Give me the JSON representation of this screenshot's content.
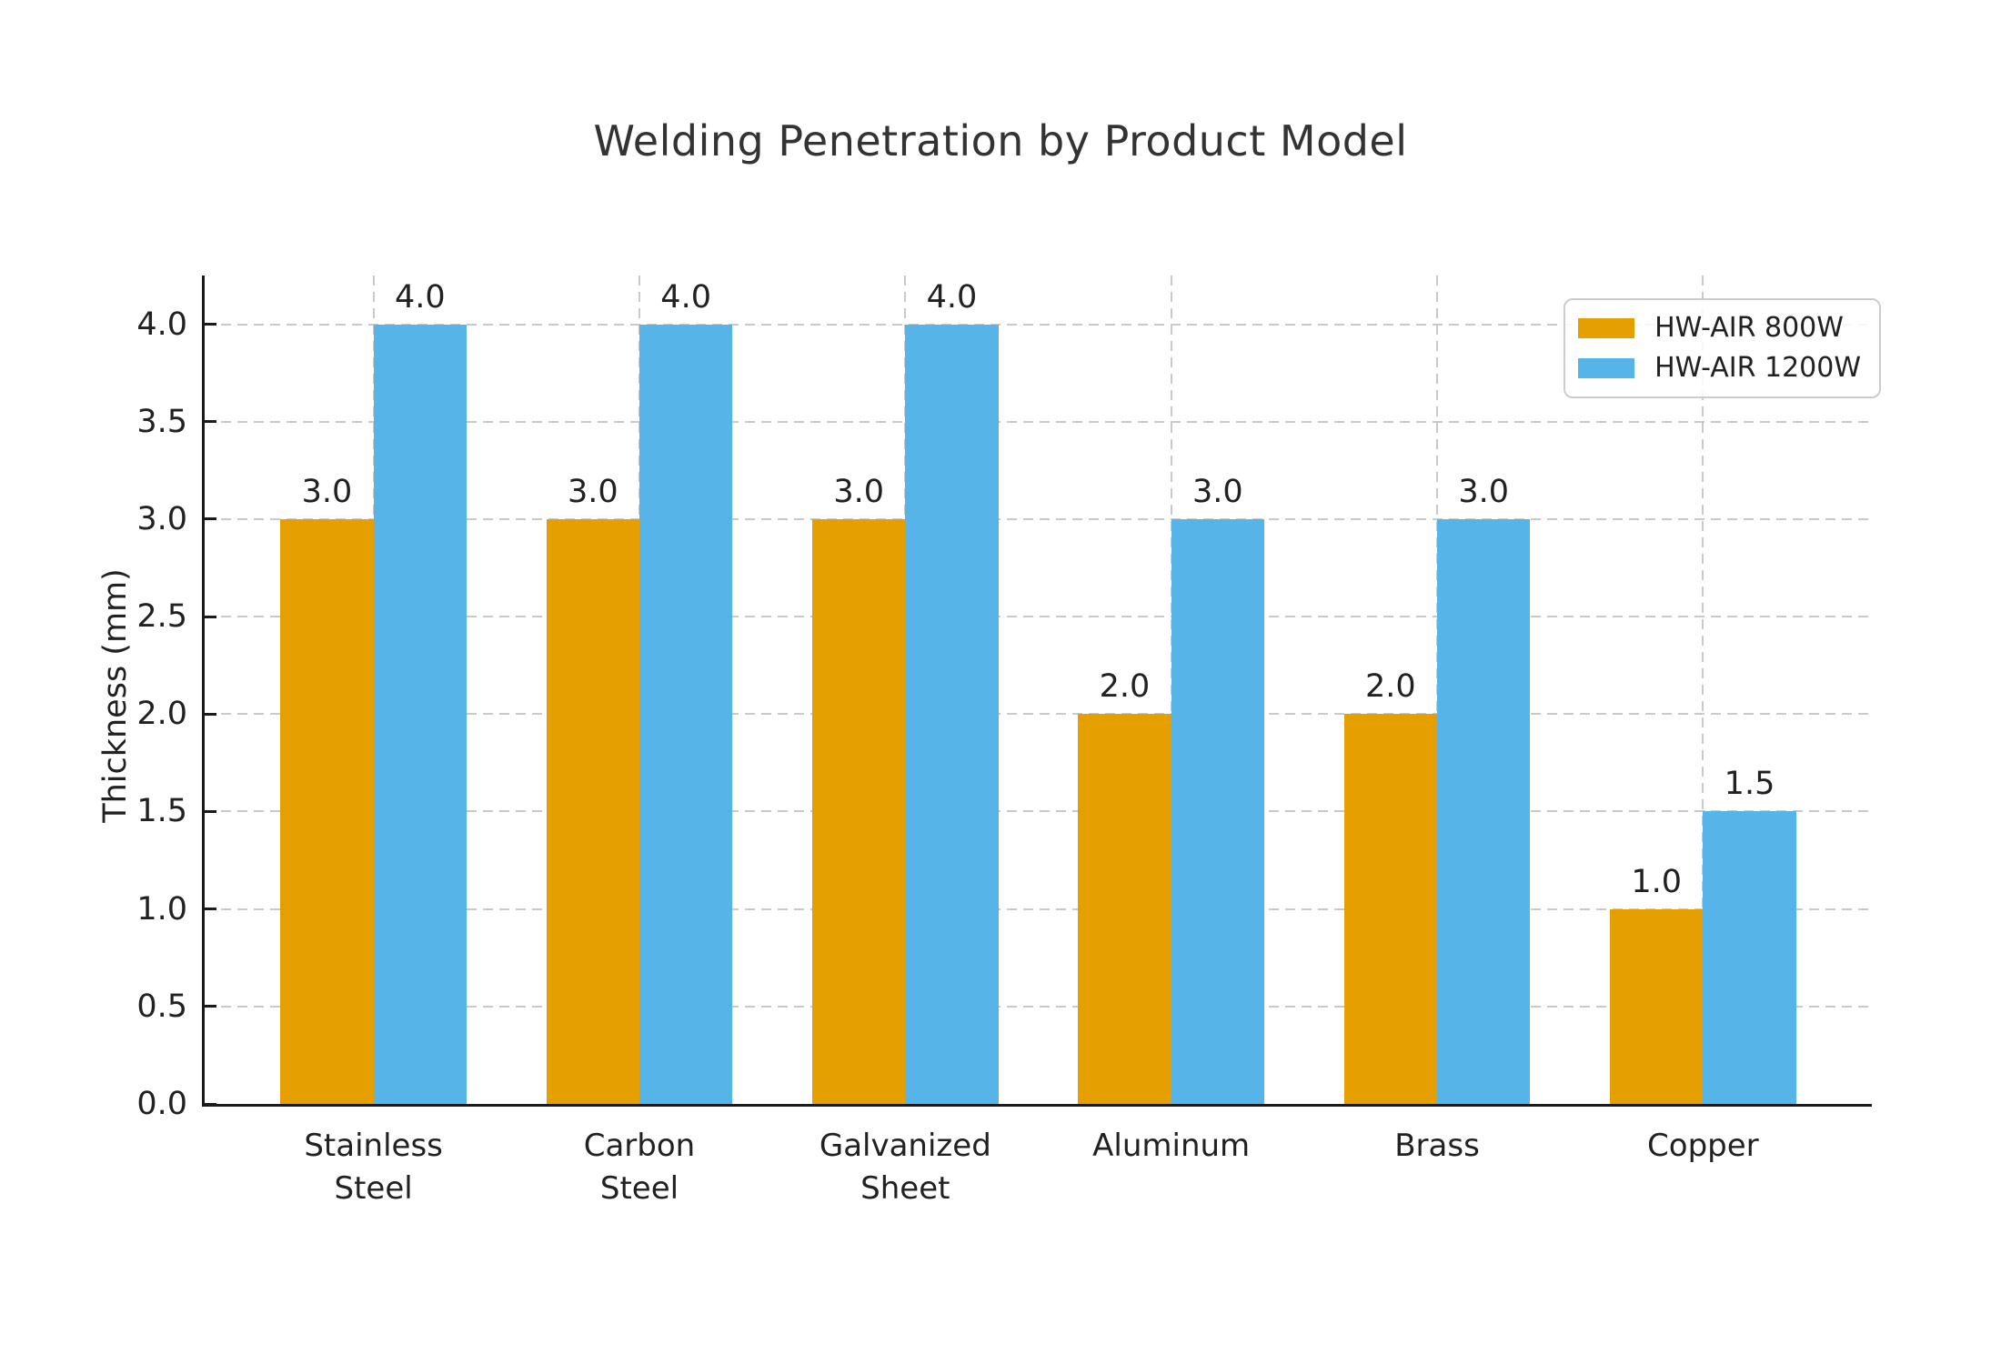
{
  "chart_data": {
    "type": "bar",
    "title": "Welding Penetration by Product Model",
    "ylabel": "Thickness (mm)",
    "xlabel": "",
    "categories": [
      "Stainless Steel",
      "Carbon Steel",
      "Galvanized Sheet",
      "Aluminum",
      "Brass",
      "Copper"
    ],
    "category_label_lines": [
      [
        "Stainless",
        "Steel"
      ],
      [
        "Carbon",
        "Steel"
      ],
      [
        "Galvanized",
        "Sheet"
      ],
      [
        "Aluminum"
      ],
      [
        "Brass"
      ],
      [
        "Copper"
      ]
    ],
    "series": [
      {
        "name": "HW-AIR 800W",
        "color": "#E69F00",
        "values": [
          3.0,
          3.0,
          3.0,
          2.0,
          2.0,
          1.0
        ]
      },
      {
        "name": "HW-AIR 1200W",
        "color": "#56B4E9",
        "values": [
          4.0,
          4.0,
          4.0,
          3.0,
          3.0,
          1.5
        ]
      }
    ],
    "bar_value_labels": {
      "series_0": [
        "3.0",
        "3.0",
        "3.0",
        "2.0",
        "2.0",
        "1.0"
      ],
      "series_1": [
        "4.0",
        "4.0",
        "4.0",
        "3.0",
        "3.0",
        "1.5"
      ]
    },
    "yticks": [
      0.0,
      0.5,
      1.0,
      1.5,
      2.0,
      2.5,
      3.0,
      3.5,
      4.0
    ],
    "ytick_labels": [
      "0.0",
      "0.5",
      "1.0",
      "1.5",
      "2.0",
      "2.5",
      "3.0",
      "3.5",
      "4.0"
    ],
    "ylim": [
      0,
      4.25
    ],
    "grid": {
      "horizontal": true,
      "vertical": true,
      "style": "dashed",
      "color": "#c9c9c9"
    },
    "legend": {
      "position": "upper right",
      "entries": [
        "HW-AIR 800W",
        "HW-AIR 1200W"
      ]
    },
    "colors": {
      "spine": "#1a1a1a",
      "text": "#212121",
      "title": "#333333",
      "background": "#ffffff",
      "series_800w": "#E69F00",
      "series_1200w": "#56B4E9"
    }
  }
}
